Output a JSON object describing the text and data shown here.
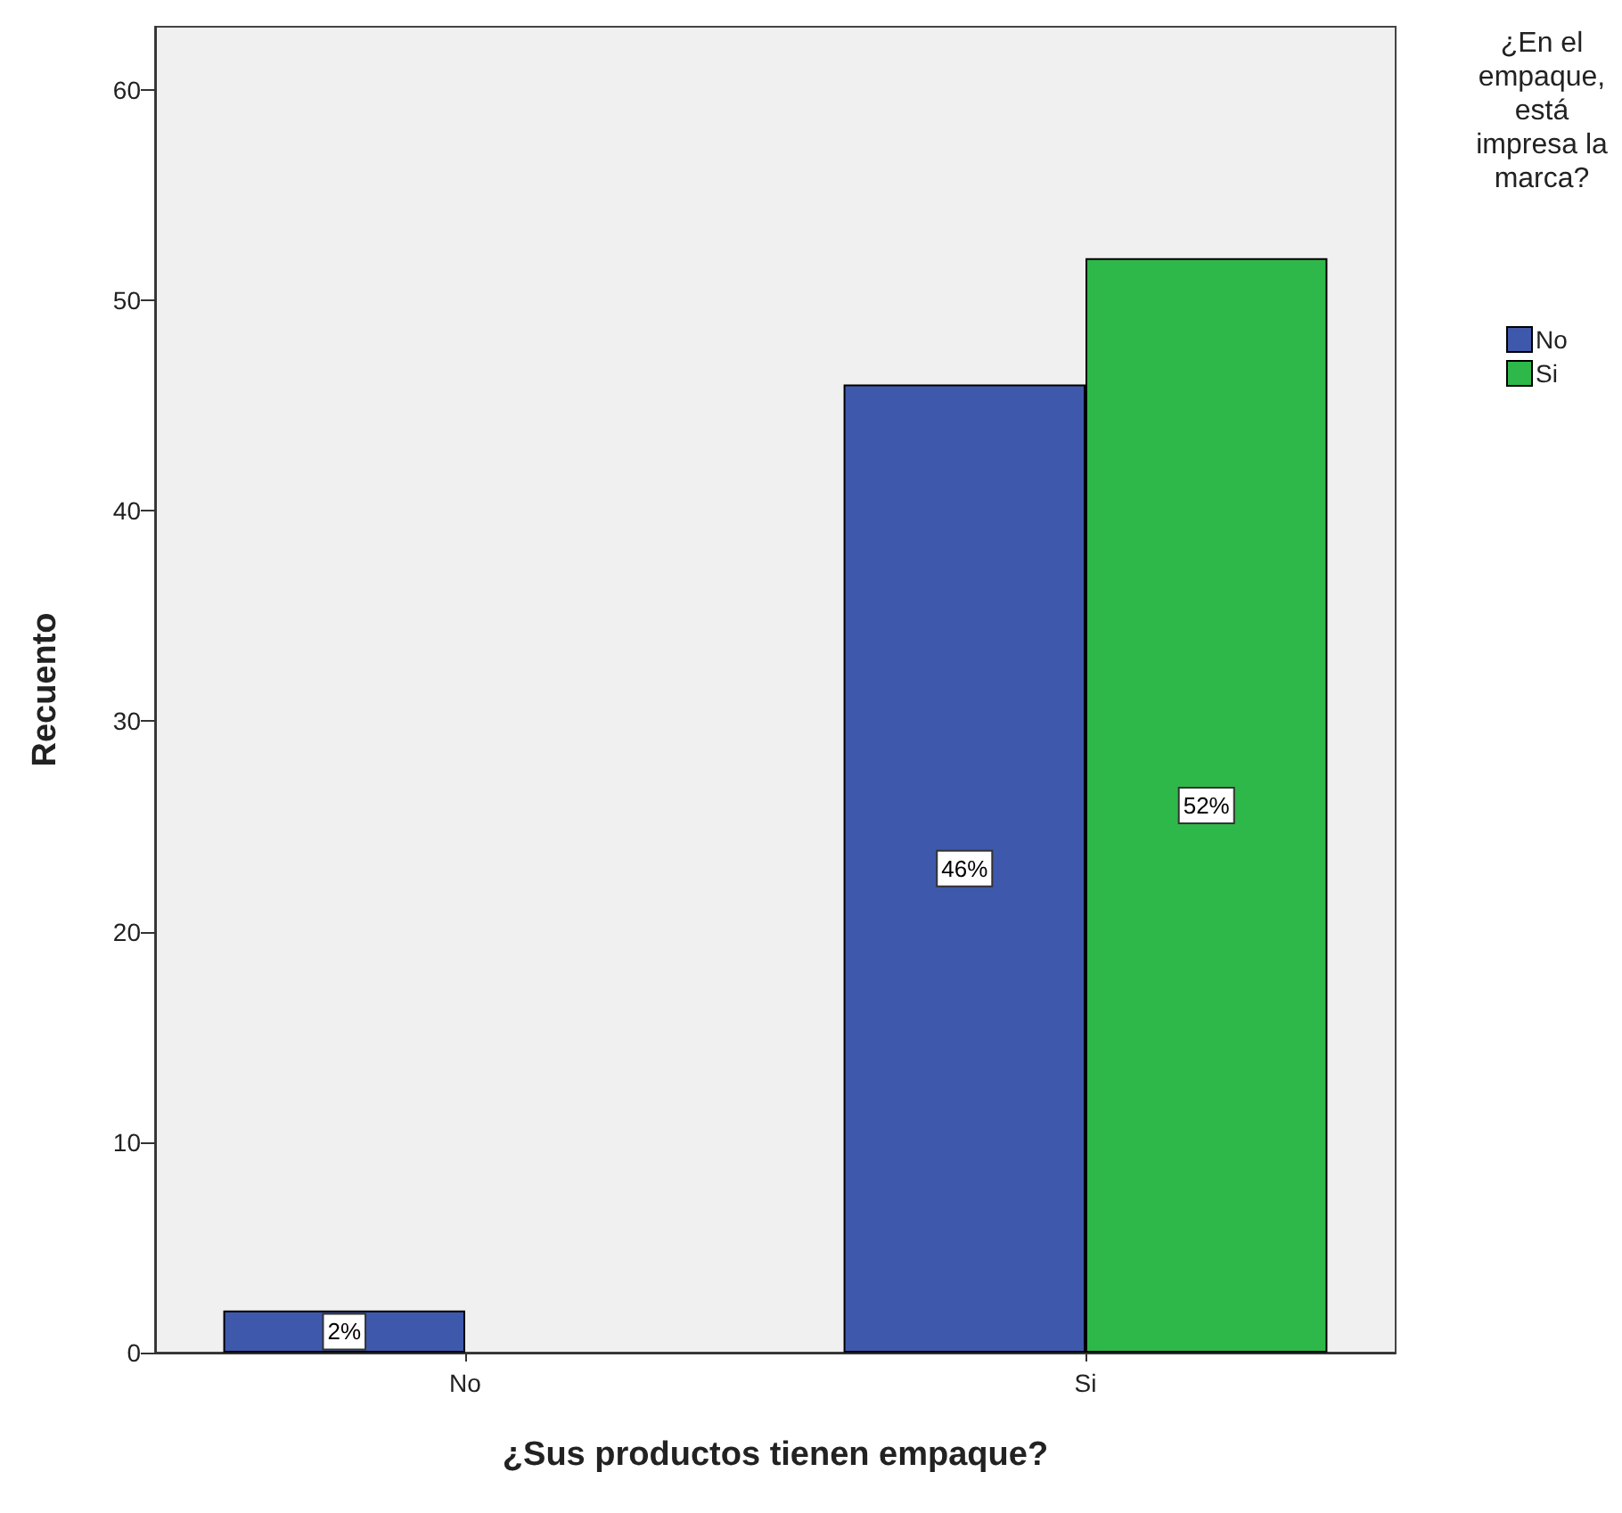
{
  "chart_data": {
    "type": "bar",
    "xlabel": "¿Sus productos tienen empaque?",
    "ylabel": "Recuento",
    "legend_title": "¿En el\nempaque,\nestá\nimpresa la\nmarca?",
    "categories": [
      "No",
      "Si"
    ],
    "series": [
      {
        "name": "No",
        "color": "#3e58ac",
        "values": [
          2,
          46
        ],
        "value_labels": [
          "2%",
          "46%"
        ]
      },
      {
        "name": "Si",
        "color": "#2eb84a",
        "values": [
          null,
          52
        ],
        "value_labels": [
          null,
          "52%"
        ]
      }
    ],
    "ylim": [
      0,
      63
    ],
    "yticks": [
      0,
      10,
      20,
      30,
      40,
      50,
      60
    ],
    "grid": false,
    "legend": "right"
  }
}
